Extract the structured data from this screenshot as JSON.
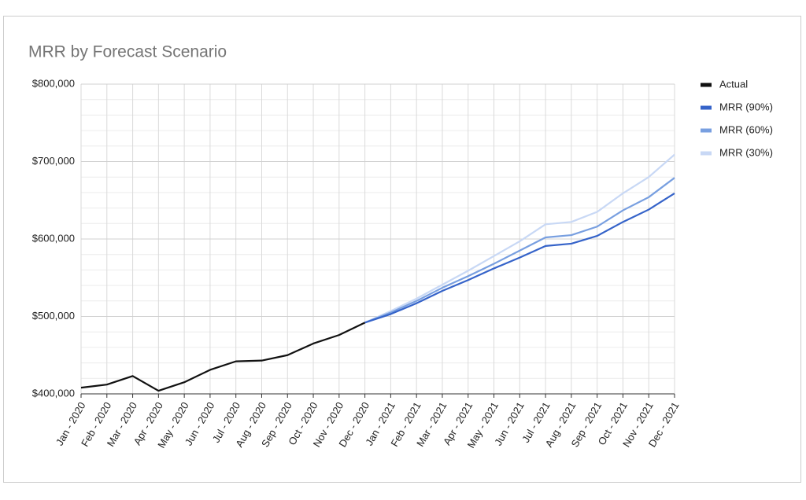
{
  "chart_data": {
    "type": "line",
    "title": "MRR by Forecast Scenario",
    "categories": [
      "Jan - 2020",
      "Feb - 2020",
      "Mar - 2020",
      "Apr - 2020",
      "May - 2020",
      "Jun - 2020",
      "Jul - 2020",
      "Aug - 2020",
      "Sep - 2020",
      "Oct - 2020",
      "Nov - 2020",
      "Dec - 2020",
      "Jan - 2021",
      "Feb - 2021",
      "Mar - 2021",
      "Apr - 2021",
      "May - 2021",
      "Jun - 2021",
      "Jul - 2021",
      "Aug - 2021",
      "Sep - 2021",
      "Oct - 2021",
      "Nov - 2021",
      "Dec - 2021"
    ],
    "series": [
      {
        "name": "Actual",
        "color": "#111111",
        "values": [
          408000,
          412000,
          423000,
          404000,
          415000,
          431000,
          442000,
          443000,
          450000,
          465000,
          476000,
          492000,
          null,
          null,
          null,
          null,
          null,
          null,
          null,
          null,
          null,
          null,
          null,
          null
        ]
      },
      {
        "name": "MRR (90%)",
        "color": "#3563c9",
        "values": [
          null,
          null,
          null,
          null,
          null,
          null,
          null,
          null,
          null,
          null,
          null,
          492000,
          503000,
          517000,
          533000,
          547000,
          562000,
          576000,
          591000,
          594000,
          604000,
          622000,
          638000,
          659000
        ]
      },
      {
        "name": "MRR (60%)",
        "color": "#789fe0",
        "values": [
          null,
          null,
          null,
          null,
          null,
          null,
          null,
          null,
          null,
          null,
          null,
          492000,
          505000,
          520000,
          537000,
          552000,
          568000,
          585000,
          602000,
          605000,
          616000,
          637000,
          654000,
          679000
        ]
      },
      {
        "name": "MRR (30%)",
        "color": "#c8d8f5",
        "values": [
          null,
          null,
          null,
          null,
          null,
          null,
          null,
          null,
          null,
          null,
          null,
          492000,
          507000,
          523000,
          541000,
          559000,
          578000,
          597000,
          619000,
          622000,
          635000,
          659000,
          680000,
          709000
        ]
      }
    ],
    "ylim": [
      400000,
      800000
    ],
    "yticks": [
      {
        "value": 400000,
        "label": "$400,000"
      },
      {
        "value": 500000,
        "label": "$500,000"
      },
      {
        "value": 600000,
        "label": "$600,000"
      },
      {
        "value": 700000,
        "label": "$700,000"
      },
      {
        "value": 800000,
        "label": "$800,000"
      }
    ],
    "grid": true,
    "legend": "right"
  }
}
